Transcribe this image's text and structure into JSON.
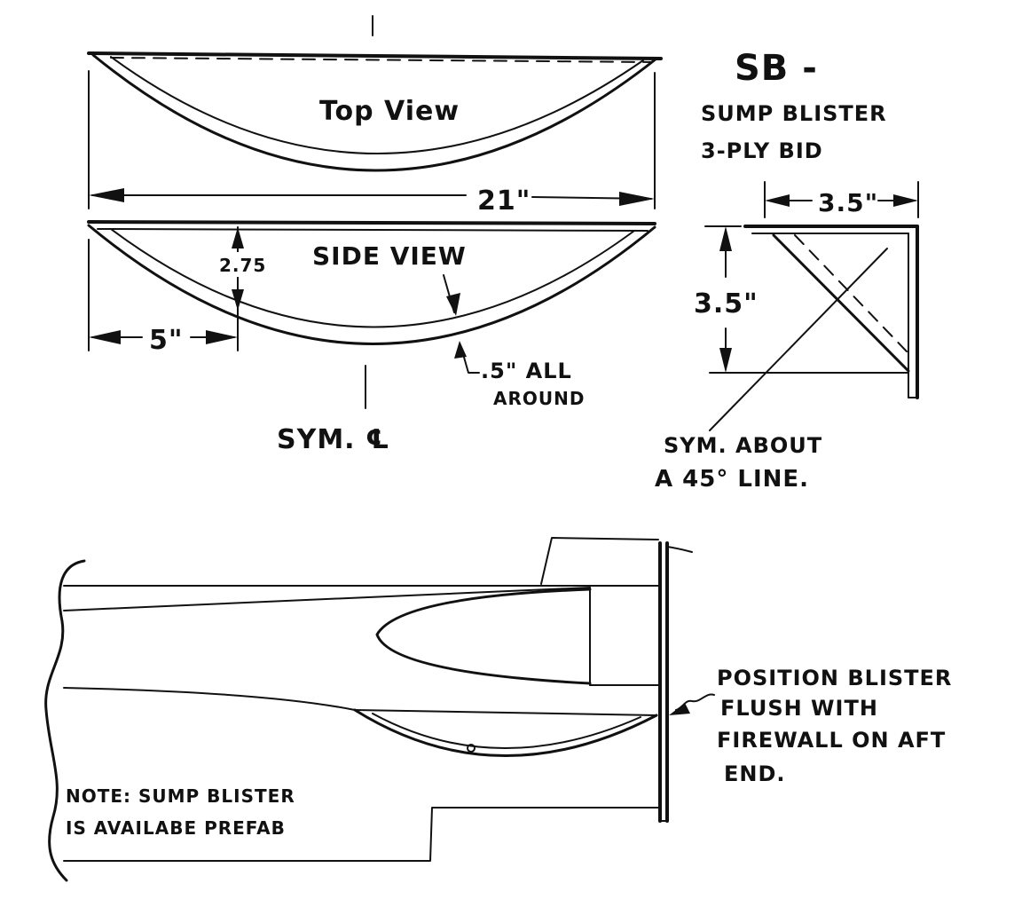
{
  "drawing": {
    "part_code": "SB -",
    "part_name": "SUMP BLISTER",
    "ply_spec": "3-PLY BID",
    "top_view_label": "Top View",
    "side_view_label": "SIDE VIEW",
    "length_dim": "21\"",
    "depth_dim": "2.75",
    "offset_dim": "5\"",
    "flange_note_1": ".5\" ALL",
    "flange_note_2": "AROUND",
    "symmetry_label": "SYM. ℄",
    "section_width_dim": "3.5\"",
    "section_height_dim": "3.5\"",
    "section_sym_note_1": "SYM. ABOUT",
    "section_sym_note_2": "A 45° LINE.",
    "position_note": [
      "POSITION BLISTER",
      "FLUSH WITH",
      "FIREWALL ON AFT",
      "END."
    ],
    "prefab_note": [
      "NOTE: SUMP BLISTER",
      "IS AVAILABE PREFAB"
    ]
  },
  "colors": {
    "ink": "#111111",
    "paper": "#ffffff"
  }
}
